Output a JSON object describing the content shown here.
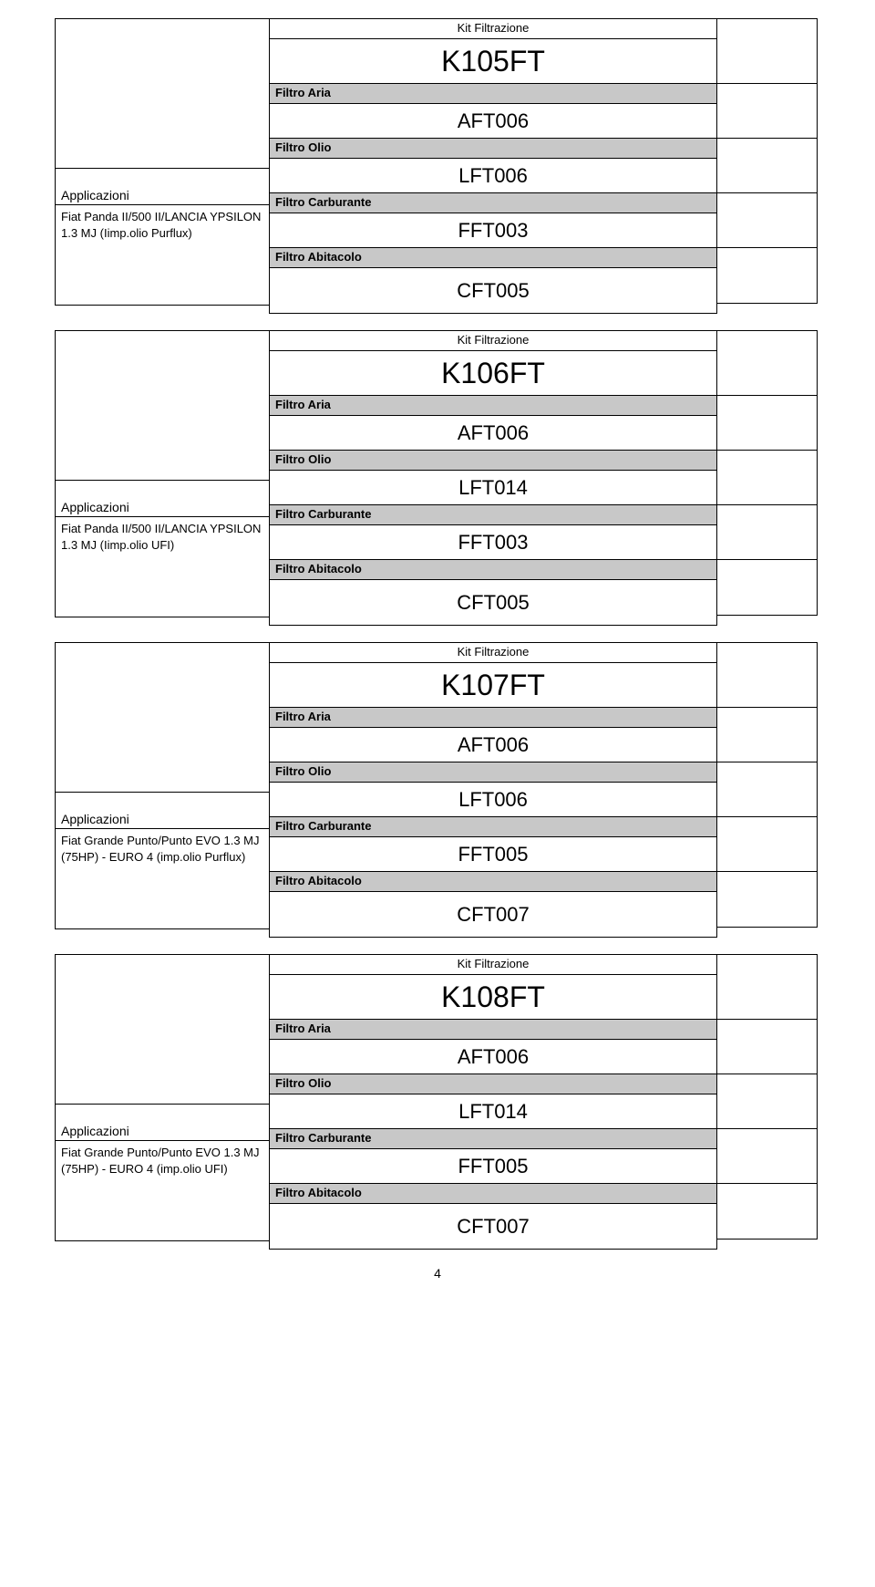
{
  "page_number": "4",
  "labels": {
    "kit_title": "Kit Filtrazione",
    "applicazioni": "Applicazioni",
    "filtro_aria": "Filtro Aria",
    "filtro_olio": "Filtro Olio",
    "filtro_carburante": "Filtro Carburante",
    "filtro_abitacolo": "Filtro Abitacolo"
  },
  "colors": {
    "header_bg": "#c8c8c8",
    "border": "#000000",
    "text": "#000000",
    "bg": "#ffffff"
  },
  "kits": [
    {
      "code": "K105FT",
      "application": "Fiat Panda II/500 II/LANCIA YPSILON 1.3 MJ (Iimp.olio Purflux)",
      "aria": "AFT006",
      "olio": "LFT006",
      "carburante": "FFT003",
      "abitacolo": "CFT005"
    },
    {
      "code": "K106FT",
      "application": "Fiat Panda II/500 II/LANCIA YPSILON 1.3 MJ (Iimp.olio UFI)",
      "aria": "AFT006",
      "olio": "LFT014",
      "carburante": "FFT003",
      "abitacolo": "CFT005"
    },
    {
      "code": "K107FT",
      "application": "Fiat Grande Punto/Punto EVO 1.3 MJ (75HP) - EURO 4 (imp.olio Purflux)",
      "aria": "AFT006",
      "olio": "LFT006",
      "carburante": "FFT005",
      "abitacolo": "CFT007"
    },
    {
      "code": "K108FT",
      "application": "Fiat Grande Punto/Punto EVO 1.3 MJ (75HP) - EURO 4 (imp.olio UFI)",
      "aria": "AFT006",
      "olio": "LFT014",
      "carburante": "FFT005",
      "abitacolo": "CFT007"
    }
  ]
}
